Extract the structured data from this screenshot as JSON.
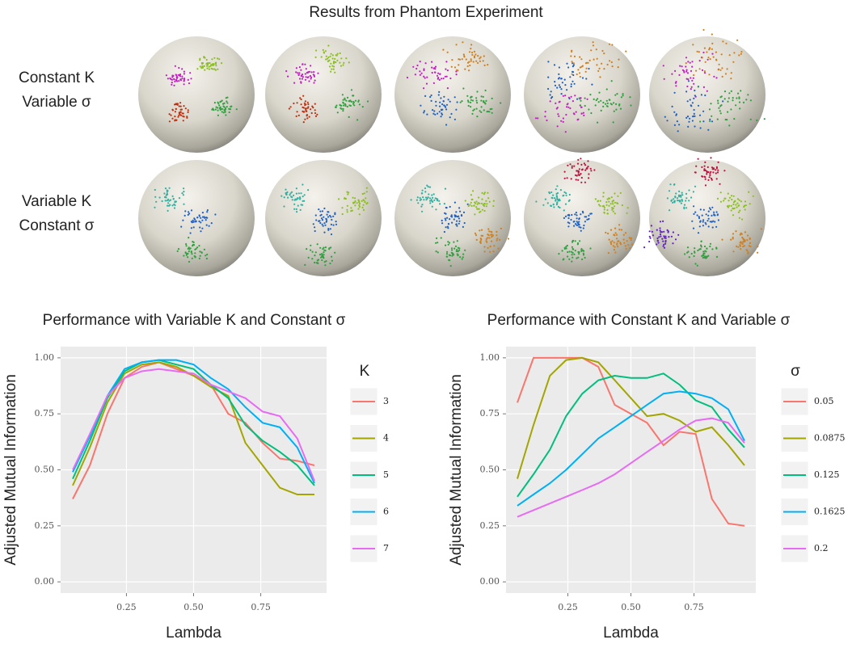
{
  "title": "Results from Phantom Experiment",
  "row_labels": [
    [
      "Constant K",
      "Variable σ"
    ],
    [
      "Variable K",
      "Constant σ"
    ]
  ],
  "chart_data": [
    {
      "type": "line",
      "title": "Performance with Variable K and Constant σ",
      "x_label": "Lambda",
      "y_label": "Adjusted Mutual Information",
      "legend_title": "K",
      "x": [
        0.05,
        0.114,
        0.179,
        0.243,
        0.307,
        0.371,
        0.436,
        0.5,
        0.564,
        0.629,
        0.693,
        0.757,
        0.821,
        0.886,
        0.95
      ],
      "xlim": [
        0.005,
        0.995
      ],
      "ylim": [
        -0.05,
        1.05
      ],
      "xticks": [
        {
          "value": 0.25,
          "label": "0.25"
        },
        {
          "value": 0.5,
          "label": "0.50"
        },
        {
          "value": 0.75,
          "label": "0.75"
        }
      ],
      "yticks": [
        {
          "value": 0,
          "label": "0.00"
        },
        {
          "value": 0.25,
          "label": "0.25"
        },
        {
          "value": 0.5,
          "label": "0.50"
        },
        {
          "value": 0.75,
          "label": "0.75"
        },
        {
          "value": 1,
          "label": "1.00"
        }
      ],
      "grid": true,
      "series": [
        {
          "name": "3",
          "color": "#f8766d",
          "values": [
            0.37,
            0.52,
            0.75,
            0.91,
            0.96,
            0.98,
            0.95,
            0.92,
            0.88,
            0.75,
            0.71,
            0.62,
            0.55,
            0.54,
            0.52
          ]
        },
        {
          "name": "4",
          "color": "#a3a500",
          "values": [
            0.43,
            0.6,
            0.8,
            0.93,
            0.97,
            0.98,
            0.96,
            0.92,
            0.87,
            0.83,
            0.62,
            0.52,
            0.42,
            0.39,
            0.39
          ]
        },
        {
          "name": "5",
          "color": "#00bf7d",
          "values": [
            0.46,
            0.63,
            0.82,
            0.94,
            0.98,
            0.99,
            0.97,
            0.95,
            0.88,
            0.82,
            0.7,
            0.63,
            0.58,
            0.52,
            0.43
          ]
        },
        {
          "name": "6",
          "color": "#00b0f6",
          "values": [
            0.49,
            0.65,
            0.83,
            0.95,
            0.98,
            0.99,
            0.99,
            0.97,
            0.91,
            0.86,
            0.78,
            0.71,
            0.69,
            0.6,
            0.44
          ]
        },
        {
          "name": "7",
          "color": "#e76bf3",
          "values": [
            0.5,
            0.66,
            0.83,
            0.91,
            0.94,
            0.95,
            0.94,
            0.93,
            0.88,
            0.85,
            0.82,
            0.76,
            0.74,
            0.64,
            0.45
          ]
        }
      ]
    },
    {
      "type": "line",
      "title": "Performance with Constant K and Variable σ",
      "x_label": "Lambda",
      "y_label": "Adjusted Mutual Information",
      "legend_title": "σ",
      "x": [
        0.05,
        0.114,
        0.179,
        0.243,
        0.307,
        0.371,
        0.436,
        0.5,
        0.564,
        0.629,
        0.693,
        0.757,
        0.821,
        0.886,
        0.95
      ],
      "xlim": [
        0.005,
        0.995
      ],
      "ylim": [
        -0.05,
        1.05
      ],
      "xticks": [
        {
          "value": 0.25,
          "label": "0.25"
        },
        {
          "value": 0.5,
          "label": "0.50"
        },
        {
          "value": 0.75,
          "label": "0.75"
        }
      ],
      "yticks": [
        {
          "value": 0,
          "label": "0.00"
        },
        {
          "value": 0.25,
          "label": "0.25"
        },
        {
          "value": 0.5,
          "label": "0.50"
        },
        {
          "value": 0.75,
          "label": "0.75"
        },
        {
          "value": 1,
          "label": "1.00"
        }
      ],
      "grid": true,
      "series": [
        {
          "name": "0.05",
          "color": "#f8766d",
          "values": [
            0.8,
            1.0,
            1.0,
            1.0,
            1.0,
            0.96,
            0.79,
            0.75,
            0.71,
            0.61,
            0.67,
            0.66,
            0.37,
            0.26,
            0.25
          ]
        },
        {
          "name": "0.0875",
          "color": "#a3a500",
          "values": [
            0.46,
            0.7,
            0.92,
            0.99,
            1.0,
            0.98,
            0.9,
            0.82,
            0.74,
            0.75,
            0.72,
            0.67,
            0.69,
            0.61,
            0.52
          ]
        },
        {
          "name": "0.125",
          "color": "#00bf7d",
          "values": [
            0.38,
            0.48,
            0.59,
            0.74,
            0.84,
            0.9,
            0.92,
            0.91,
            0.91,
            0.93,
            0.88,
            0.81,
            0.78,
            0.68,
            0.6
          ]
        },
        {
          "name": "0.1625",
          "color": "#00b0f6",
          "values": [
            0.34,
            0.39,
            0.44,
            0.5,
            0.57,
            0.64,
            0.69,
            0.74,
            0.79,
            0.84,
            0.85,
            0.84,
            0.82,
            0.77,
            0.63
          ]
        },
        {
          "name": "0.2",
          "color": "#e76bf3",
          "values": [
            0.29,
            0.32,
            0.35,
            0.38,
            0.41,
            0.44,
            0.48,
            0.53,
            0.58,
            0.63,
            0.68,
            0.72,
            0.73,
            0.71,
            0.62
          ]
        }
      ]
    }
  ]
}
